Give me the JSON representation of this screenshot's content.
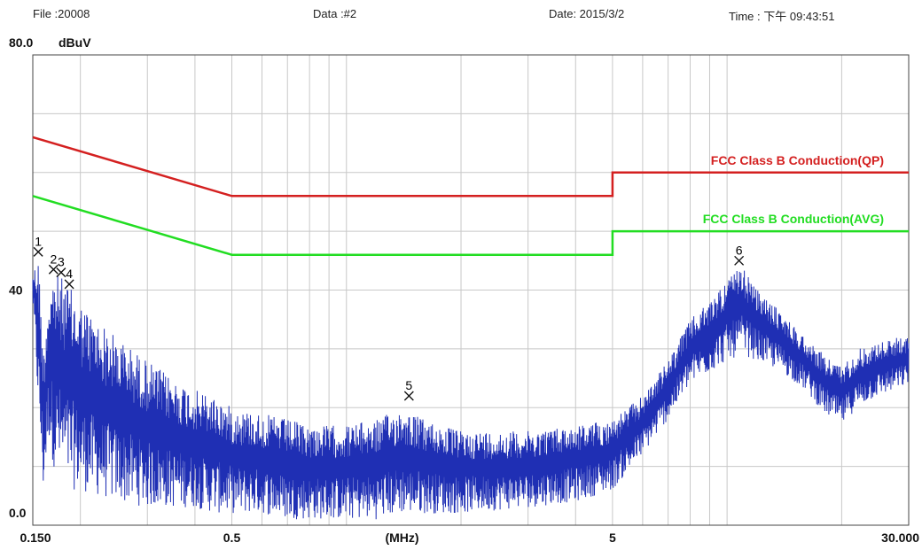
{
  "header": {
    "file": "File :20008",
    "data": "Data :#2",
    "date": "Date: 2015/3/2",
    "time": "Time : 下午  09:43:51"
  },
  "chart_data": {
    "type": "line",
    "xscale": "log",
    "xlim": [
      0.15,
      30
    ],
    "ylim": [
      0,
      80
    ],
    "grid": true,
    "y_unit": "dBuV",
    "x_unit": "(MHz)",
    "y_ticks": [
      "80.0",
      "40",
      "0.0"
    ],
    "x_ticks": [
      {
        "value": 0.15,
        "label": "0.150"
      },
      {
        "value": 0.5,
        "label": "0.5"
      },
      {
        "value": 5,
        "label": "5"
      },
      {
        "value": 30,
        "label": "30.000"
      }
    ],
    "x_unit_position": 1.4,
    "colors": {
      "qp": "#d42020",
      "avg": "#22dd22",
      "trace": "#1f2fb4",
      "grid": "#c8c8c8"
    },
    "limits": [
      {
        "name": "FCC Class B Conduction(QP)",
        "color": "#d42020",
        "points": [
          [
            0.15,
            66
          ],
          [
            0.5,
            56
          ],
          [
            5,
            56
          ],
          [
            5,
            60
          ],
          [
            30,
            60
          ]
        ]
      },
      {
        "name": "FCC Class B Conduction(AVG)",
        "color": "#22dd22",
        "points": [
          [
            0.15,
            56
          ],
          [
            0.5,
            46
          ],
          [
            5,
            46
          ],
          [
            5,
            50
          ],
          [
            30,
            50
          ]
        ]
      }
    ],
    "markers": [
      {
        "label": "1",
        "x": 0.155,
        "y": 46.5
      },
      {
        "label": "2",
        "x": 0.17,
        "y": 43.5
      },
      {
        "label": "3",
        "x": 0.178,
        "y": 43
      },
      {
        "label": "4",
        "x": 0.187,
        "y": 41
      },
      {
        "label": "5",
        "x": 1.46,
        "y": 22
      },
      {
        "label": "6",
        "x": 10.75,
        "y": 45
      }
    ],
    "trace_envelope": [
      [
        0.15,
        38,
        43
      ],
      [
        0.155,
        20,
        46
      ],
      [
        0.16,
        5,
        30
      ],
      [
        0.165,
        15,
        40
      ],
      [
        0.17,
        10,
        43
      ],
      [
        0.18,
        8,
        42
      ],
      [
        0.19,
        6,
        40
      ],
      [
        0.2,
        6,
        38
      ],
      [
        0.22,
        5,
        35
      ],
      [
        0.25,
        4,
        32
      ],
      [
        0.3,
        3,
        28
      ],
      [
        0.35,
        3,
        25
      ],
      [
        0.4,
        3,
        23
      ],
      [
        0.45,
        2,
        22
      ],
      [
        0.5,
        2,
        20
      ],
      [
        0.6,
        2,
        19
      ],
      [
        0.7,
        1,
        18
      ],
      [
        0.8,
        1,
        17
      ],
      [
        1.0,
        1,
        17
      ],
      [
        1.2,
        1,
        18
      ],
      [
        1.4,
        2,
        20
      ],
      [
        1.6,
        2,
        18
      ],
      [
        2.0,
        2,
        16
      ],
      [
        3.0,
        3,
        16
      ],
      [
        4.0,
        4,
        17
      ],
      [
        5.0,
        6,
        18
      ],
      [
        6.0,
        12,
        22
      ],
      [
        7.0,
        18,
        28
      ],
      [
        8.0,
        24,
        35
      ],
      [
        9.0,
        26,
        38
      ],
      [
        10.0,
        28,
        42
      ],
      [
        11.0,
        29,
        44
      ],
      [
        12.0,
        28,
        40
      ],
      [
        14.0,
        26,
        36
      ],
      [
        16.0,
        23,
        32
      ],
      [
        18.0,
        19,
        29
      ],
      [
        20.0,
        17,
        27
      ],
      [
        22.0,
        20,
        30
      ],
      [
        25.0,
        22,
        31
      ],
      [
        28.0,
        23,
        32
      ],
      [
        30.0,
        24,
        32
      ]
    ]
  }
}
